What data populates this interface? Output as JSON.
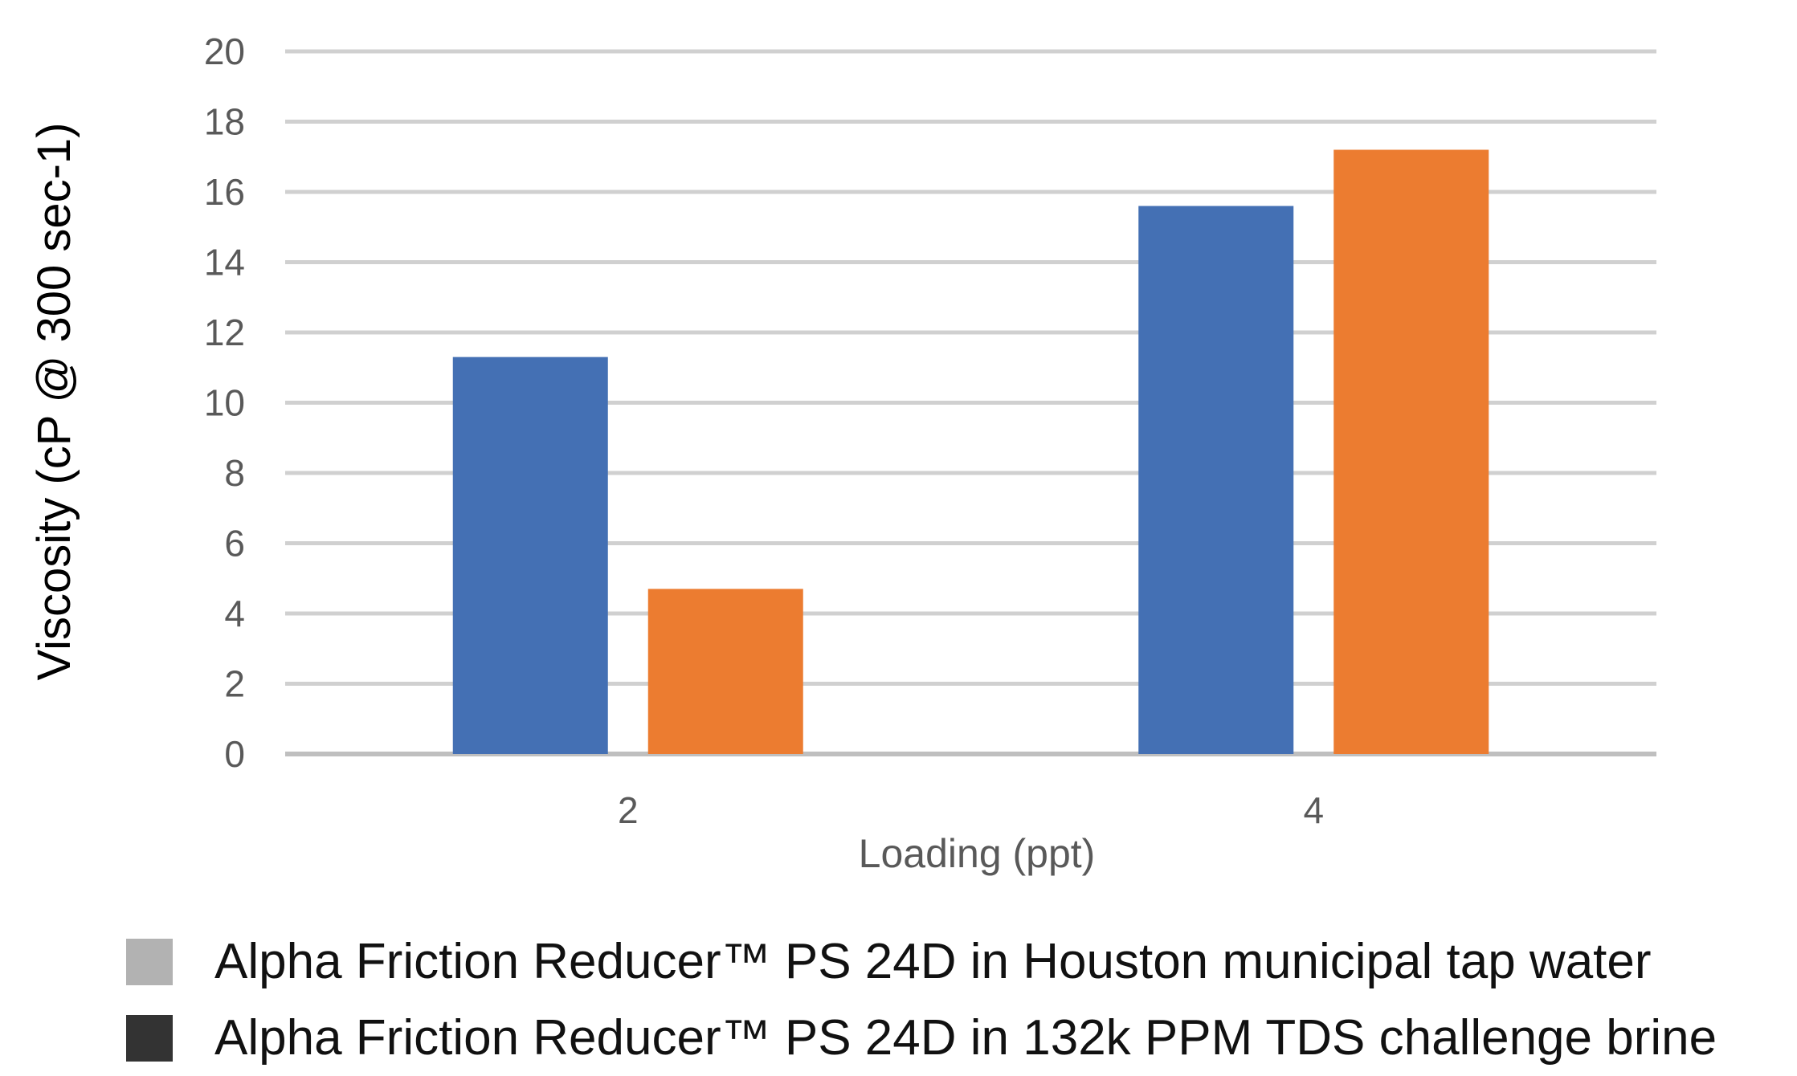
{
  "chart_data": {
    "type": "bar",
    "categories": [
      "2",
      "4"
    ],
    "series": [
      {
        "values": [
          11.3,
          15.6
        ],
        "color": "#4470B4"
      },
      {
        "values": [
          4.7,
          17.2
        ],
        "color": "#EC7C30"
      }
    ],
    "xlabel": "Loading (ppt)",
    "ylabel": "Viscosity  (cP @ 300 sec-1)",
    "ylim": [
      0,
      20
    ],
    "yticks": [
      "0",
      "2",
      "4",
      "6",
      "8",
      "10",
      "12",
      "14",
      "16",
      "18",
      "20"
    ],
    "grid": true
  },
  "legend": {
    "items": [
      {
        "label": "Alpha Friction Reducer™  PS 24D in Houston municipal tap water",
        "color": "#B2B2B2"
      },
      {
        "label": "Alpha Friction Reducer™  PS 24D in 132k PPM TDS challenge brine",
        "color": "#333333"
      }
    ]
  }
}
